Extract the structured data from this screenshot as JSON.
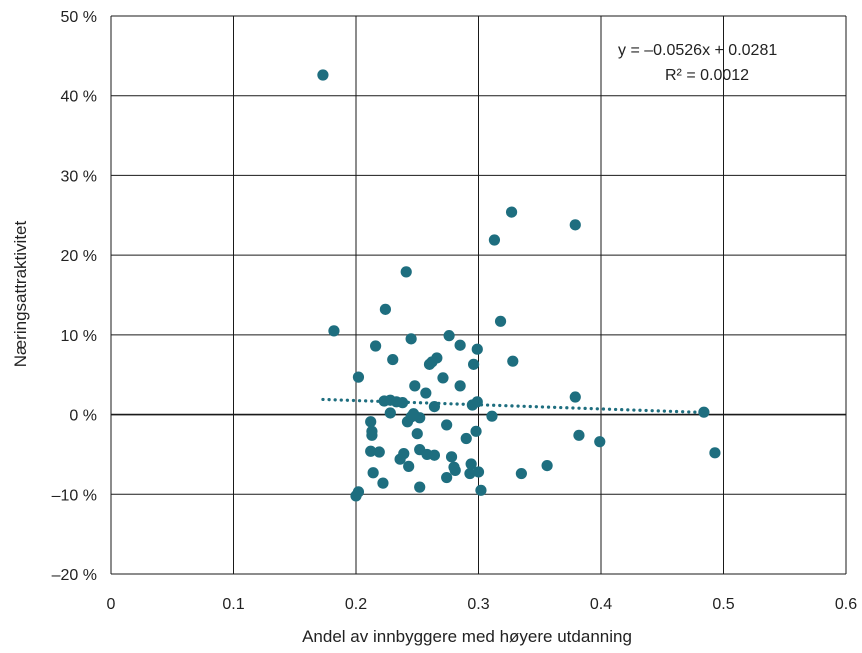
{
  "chart_data": {
    "type": "scatter",
    "title": "",
    "xlabel": "Andel av innbyggere med høyere utdanning",
    "ylabel": "Næringsattraktivitet",
    "xlim": [
      0,
      0.6
    ],
    "ylim": [
      -20,
      50
    ],
    "x_ticks": [
      0,
      0.1,
      0.2,
      0.3,
      0.4,
      0.5,
      0.6
    ],
    "x_tick_labels": [
      "0",
      "0.1",
      "0.2",
      "0.3",
      "0.4",
      "0.5",
      "0.6"
    ],
    "y_ticks": [
      -20,
      -10,
      0,
      10,
      20,
      30,
      40,
      50
    ],
    "y_tick_labels": [
      "–20 %",
      "–10 %",
      "0 %",
      "10 %",
      "20 %",
      "30 %",
      "40 %",
      "50 %"
    ],
    "grid": true,
    "point_color": "#1e6e7f",
    "trendline": {
      "style": "dotted",
      "slope": -0.0526,
      "intercept": 0.0281,
      "x_range": [
        0.173,
        0.485
      ],
      "equation": "y = –0.0526x + 0.0281",
      "r_squared": "R² = 0.0012"
    },
    "points": [
      [
        0.173,
        42.6
      ],
      [
        0.182,
        10.5
      ],
      [
        0.2,
        -10.2
      ],
      [
        0.202,
        -9.7
      ],
      [
        0.202,
        4.7
      ],
      [
        0.212,
        -4.6
      ],
      [
        0.212,
        -0.9
      ],
      [
        0.213,
        -2.6
      ],
      [
        0.213,
        -2.1
      ],
      [
        0.214,
        -7.3
      ],
      [
        0.216,
        8.6
      ],
      [
        0.219,
        -4.7
      ],
      [
        0.222,
        -8.6
      ],
      [
        0.224,
        13.2
      ],
      [
        0.223,
        1.7
      ],
      [
        0.228,
        1.8
      ],
      [
        0.228,
        0.2
      ],
      [
        0.23,
        6.9
      ],
      [
        0.233,
        1.6
      ],
      [
        0.236,
        -5.6
      ],
      [
        0.239,
        -4.9
      ],
      [
        0.238,
        1.5
      ],
      [
        0.241,
        17.9
      ],
      [
        0.242,
        -0.9
      ],
      [
        0.243,
        -6.5
      ],
      [
        0.245,
        -0.3
      ],
      [
        0.245,
        9.5
      ],
      [
        0.247,
        0.1
      ],
      [
        0.248,
        3.6
      ],
      [
        0.25,
        -2.4
      ],
      [
        0.252,
        -4.4
      ],
      [
        0.252,
        -9.1
      ],
      [
        0.252,
        -0.4
      ],
      [
        0.257,
        2.7
      ],
      [
        0.258,
        -5.0
      ],
      [
        0.26,
        6.3
      ],
      [
        0.262,
        6.6
      ],
      [
        0.264,
        -5.1
      ],
      [
        0.264,
        1.0
      ],
      [
        0.266,
        7.1
      ],
      [
        0.271,
        4.6
      ],
      [
        0.274,
        -1.3
      ],
      [
        0.274,
        -7.9
      ],
      [
        0.276,
        9.9
      ],
      [
        0.278,
        -5.3
      ],
      [
        0.28,
        -6.6
      ],
      [
        0.281,
        -7.0
      ],
      [
        0.285,
        3.6
      ],
      [
        0.285,
        8.7
      ],
      [
        0.29,
        -3.0
      ],
      [
        0.293,
        -7.4
      ],
      [
        0.294,
        -6.2
      ],
      [
        0.295,
        1.2
      ],
      [
        0.296,
        6.3
      ],
      [
        0.298,
        -2.1
      ],
      [
        0.299,
        8.2
      ],
      [
        0.299,
        1.6
      ],
      [
        0.3,
        -7.2
      ],
      [
        0.302,
        -9.5
      ],
      [
        0.311,
        -0.2
      ],
      [
        0.313,
        21.9
      ],
      [
        0.318,
        11.7
      ],
      [
        0.327,
        25.4
      ],
      [
        0.328,
        6.7
      ],
      [
        0.335,
        -7.4
      ],
      [
        0.356,
        -6.4
      ],
      [
        0.379,
        23.8
      ],
      [
        0.379,
        2.2
      ],
      [
        0.382,
        -2.6
      ],
      [
        0.399,
        -3.4
      ],
      [
        0.484,
        0.3
      ],
      [
        0.493,
        -4.8
      ]
    ]
  }
}
